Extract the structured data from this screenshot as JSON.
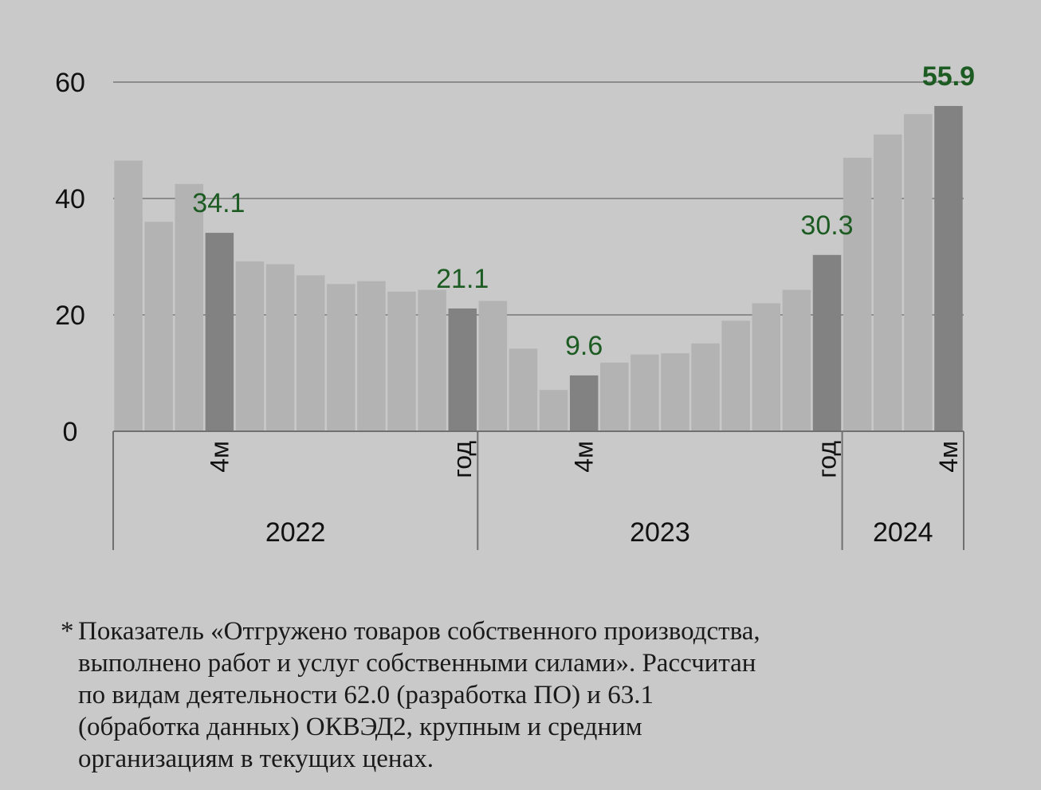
{
  "colors": {
    "background": "#c9c9c9",
    "bar_light": "#b3b3b3",
    "bar_dark": "#828282",
    "grid": "#8c8c8c",
    "label_green": "#1c5b22",
    "axis_text": "#111111"
  },
  "chart_data": {
    "type": "bar",
    "title": "",
    "xlabel": "",
    "ylabel": "",
    "ylim": [
      0,
      60
    ],
    "yticks": [
      0,
      20,
      40,
      60
    ],
    "grid": true,
    "legend": "none",
    "values": [
      46.5,
      36.0,
      42.5,
      34.1,
      29.2,
      28.7,
      26.8,
      25.3,
      25.8,
      24.0,
      24.3,
      21.1,
      22.4,
      14.2,
      7.1,
      9.6,
      11.8,
      13.2,
      13.4,
      15.1,
      19.0,
      22.0,
      24.3,
      30.3,
      47.0,
      51.0,
      54.5,
      55.9
    ],
    "highlighted_indices": [
      3,
      11,
      15,
      23,
      27
    ],
    "category_labels": [
      {
        "index": 3,
        "text": "4м"
      },
      {
        "index": 11,
        "text": "год"
      },
      {
        "index": 15,
        "text": "4м"
      },
      {
        "index": 23,
        "text": "год"
      },
      {
        "index": 27,
        "text": "4м"
      }
    ],
    "groups": [
      {
        "label": "2022",
        "start": 0,
        "end": 11
      },
      {
        "label": "2023",
        "start": 12,
        "end": 23
      },
      {
        "label": "2024",
        "start": 24,
        "end": 27
      }
    ],
    "data_labels": [
      {
        "index": 3,
        "text": "34.1",
        "bold": false
      },
      {
        "index": 11,
        "text": "21.1",
        "bold": false
      },
      {
        "index": 15,
        "text": "9.6",
        "bold": false
      },
      {
        "index": 23,
        "text": "30.3",
        "bold": false
      },
      {
        "index": 27,
        "text": "55.9",
        "bold": true
      }
    ]
  },
  "footnote": {
    "marker": "*",
    "lines": [
      "Показатель «Отгружено товаров собственного производства,",
      "выполнено работ и услуг собственными силами». Рассчитан",
      "по видам деятельности 62.0 (разработка ПО) и 63.1",
      "(обработка данных) ОКВЭД2, крупным и средним",
      "организациям в текущих ценах."
    ]
  }
}
